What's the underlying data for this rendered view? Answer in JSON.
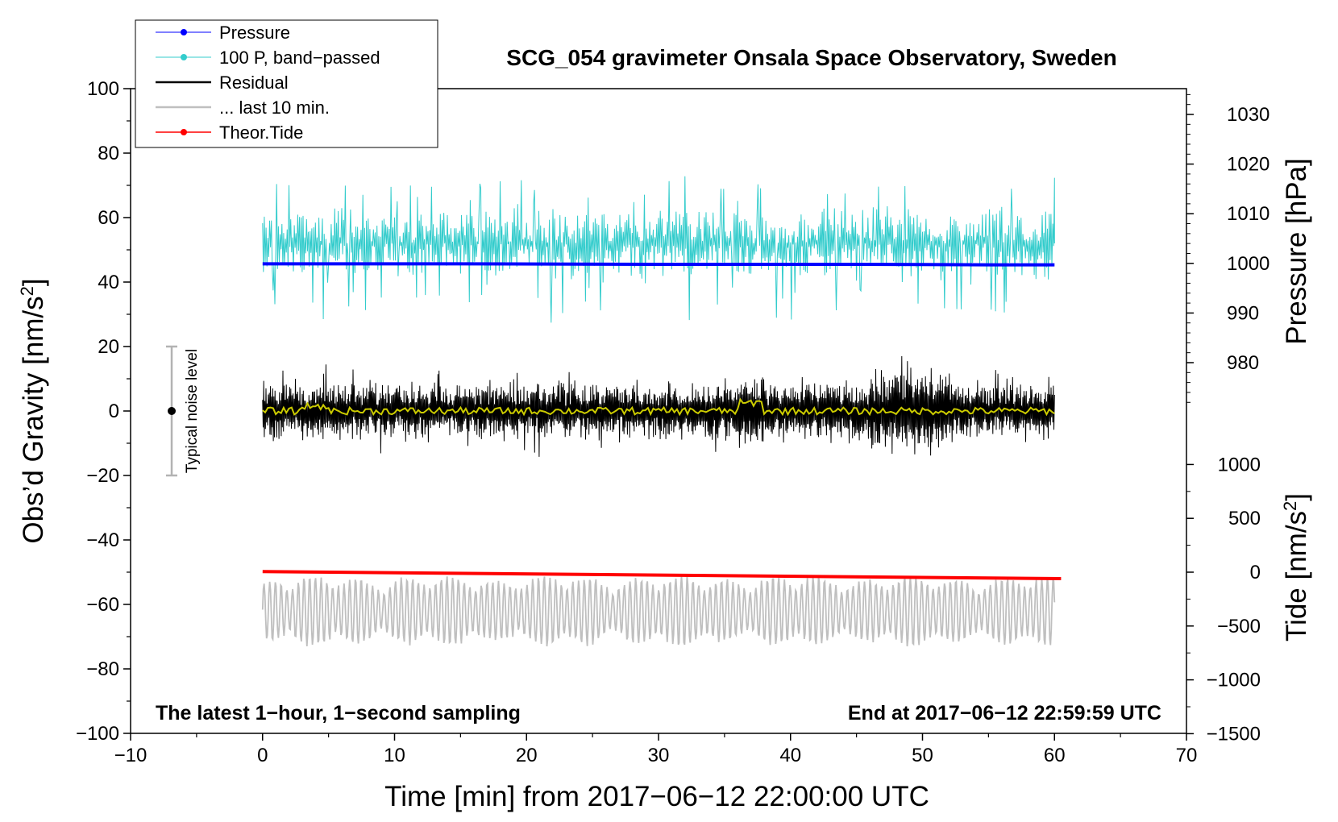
{
  "chart_data": {
    "type": "line",
    "title": "SCG_054 gravimeter Onsala Space Observatory, Sweden",
    "xlabel": "Time [min] from 2017−06−12 22:00:00 UTC",
    "ylabel_left": "Obs’d Gravity [nm/s",
    "ylabel_left_sup": "2",
    "ylabel_left_tail": "]",
    "ylabel_right_pressure": "Pressure [hPa]",
    "ylabel_right_tide": "Tide [nm/s",
    "ylabel_right_tide_sup": "2",
    "ylabel_right_tide_tail": "]",
    "xlim": [
      -10,
      70
    ],
    "ylim": [
      -100,
      100
    ],
    "xticks": [
      "−10",
      "0",
      "10",
      "20",
      "30",
      "40",
      "50",
      "60",
      "70"
    ],
    "xtick_values": [
      -10,
      0,
      10,
      20,
      30,
      40,
      50,
      60,
      70
    ],
    "yticks_left": [
      "100",
      "80",
      "60",
      "40",
      "20",
      "0",
      "−20",
      "−40",
      "−60",
      "−80",
      "−100"
    ],
    "ytick_left_values": [
      100,
      80,
      60,
      40,
      20,
      0,
      -20,
      -40,
      -60,
      -80,
      -100
    ],
    "pressure_axis": {
      "ticks": [
        "1030",
        "1020",
        "1010",
        "1000",
        "990",
        "980"
      ],
      "tick_values": [
        1030,
        1020,
        1010,
        1000,
        990,
        980
      ],
      "mapping_note": "1000 hPa aligns with 45.8 nm/s2 on left axis; 10 hPa per 15.4 nm/s2"
    },
    "tide_axis": {
      "ticks": [
        "1000",
        "500",
        "0",
        "−500",
        "−1000",
        "−1500"
      ],
      "tick_values": [
        1000,
        500,
        0,
        -500,
        -1000,
        -1500
      ],
      "mapping_note": "0 nm/s2 tide aligns with -50 nm/s2 on left axis; 500 per 16.7 nm/s2"
    },
    "series": [
      {
        "name": "Pressure",
        "color": "#0000ff",
        "x": [
          0,
          15,
          30,
          45,
          55,
          60
        ],
        "y_hpa": [
          999.9,
          999.9,
          999.8,
          999.8,
          999.7,
          999.7
        ]
      },
      {
        "name": "100 P, band−passed",
        "color": "#33cccc",
        "baseline": 52,
        "range": [
          25,
          75
        ]
      },
      {
        "name": "Residual",
        "color": "#000000",
        "baseline": 0,
        "range": [
          -17,
          17
        ]
      },
      {
        "name": "Residual smoothed",
        "color": "#cccc00",
        "baseline": 0,
        "range": [
          -3,
          5
        ]
      },
      {
        "name": "... last 10 min.",
        "color": "#bfbfbf",
        "baseline": -62,
        "range": [
          -76,
          -49
        ]
      },
      {
        "name": "Theor.Tide",
        "color": "#ff0000",
        "x": [
          0,
          60.5
        ],
        "y_tide": [
          5,
          -60
        ]
      }
    ],
    "legend": {
      "position": "top-left",
      "entries": [
        {
          "label": "Pressure",
          "color": "#0000ff",
          "marker": true
        },
        {
          "label": "100 P, band−passed",
          "color": "#33cccc",
          "marker": true
        },
        {
          "label": "Residual",
          "color": "#000000",
          "marker": false
        },
        {
          "label": "... last 10 min.",
          "color": "#bfbfbf",
          "marker": false
        },
        {
          "label": "Theor.Tide",
          "color": "#ff0000",
          "marker": true
        }
      ]
    },
    "noise_bar": {
      "label": "Typical noise level",
      "x": -7,
      "y_center": 0,
      "y_min": -20,
      "y_max": 20
    },
    "annotations": {
      "bottom_left": "The latest 1−hour, 1−second sampling",
      "bottom_right": "End at 2017−06−12 22:59:59 UTC"
    }
  }
}
